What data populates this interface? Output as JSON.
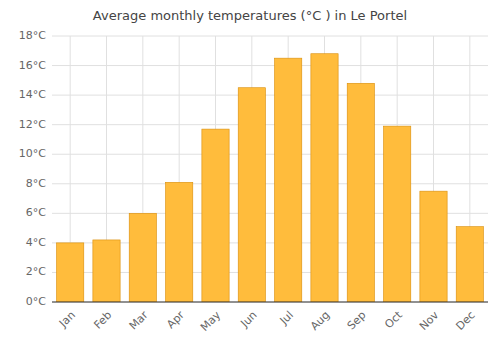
{
  "chart_data": {
    "type": "bar",
    "title": "Average monthly temperatures (°C ) in Le Portel",
    "categories": [
      "Jan",
      "Feb",
      "Mar",
      "Apr",
      "May",
      "Jun",
      "Jul",
      "Aug",
      "Sep",
      "Oct",
      "Nov",
      "Dec"
    ],
    "values": [
      4.0,
      4.2,
      6.0,
      8.1,
      11.7,
      14.5,
      16.5,
      16.8,
      14.8,
      11.9,
      7.5,
      5.1
    ],
    "color": "#FFBC3C",
    "ylim": [
      0,
      18
    ],
    "yticks": [
      {
        "value": 0,
        "label": "0°C"
      },
      {
        "value": 2,
        "label": "2°C"
      },
      {
        "value": 4,
        "label": "4°C"
      },
      {
        "value": 6,
        "label": "6°C"
      },
      {
        "value": 8,
        "label": "8°C"
      },
      {
        "value": 10,
        "label": "10°C"
      },
      {
        "value": 12,
        "label": "12°C"
      },
      {
        "value": 14,
        "label": "14°C"
      },
      {
        "value": 16,
        "label": "16°C"
      },
      {
        "value": 18,
        "label": "18°C"
      }
    ],
    "grid": true
  }
}
